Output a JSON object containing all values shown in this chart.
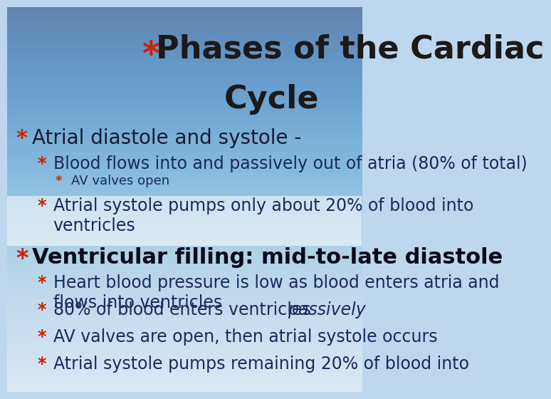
{
  "title_line1": "Phases of the Cardiac",
  "title_line2": "Cycle",
  "title_star": "*",
  "title_fontsize": 32,
  "title_color": "#1a1a1a",
  "star_color": "#cc2200",
  "bg_color_top": "#c8e0f0",
  "bg_color_bottom": "#e8f4fc",
  "content": [
    {
      "level": 0,
      "text": "Atrial diastole and systole -",
      "italic": false,
      "fontsize": 20
    },
    {
      "level": 1,
      "text": "Blood flows into and passively out of atria (80% of total)",
      "italic": false,
      "fontsize": 17
    },
    {
      "level": 2,
      "text": "AV valves open",
      "italic": false,
      "fontsize": 13
    },
    {
      "level": 1,
      "text": "Atrial systole pumps only about 20% of blood into\nventricles",
      "italic": false,
      "fontsize": 17
    },
    {
      "level": 0,
      "text": "Ventricular filling: mid-to-late diastole",
      "italic": false,
      "fontsize": 22,
      "section_break": true
    },
    {
      "level": 1,
      "text": "Heart blood pressure is low as blood enters atria and\nflows into ventricles",
      "italic": false,
      "fontsize": 17
    },
    {
      "level": 1,
      "text": "80% of blood enters ventricles passively",
      "italic": false,
      "italic_word": "passively",
      "fontsize": 17
    },
    {
      "level": 1,
      "text": "AV valves are open, then atrial systole occurs",
      "italic": false,
      "fontsize": 17
    },
    {
      "level": 1,
      "text": "Atrial systole pumps remaining 20% of blood into",
      "italic": false,
      "fontsize": 17
    }
  ]
}
